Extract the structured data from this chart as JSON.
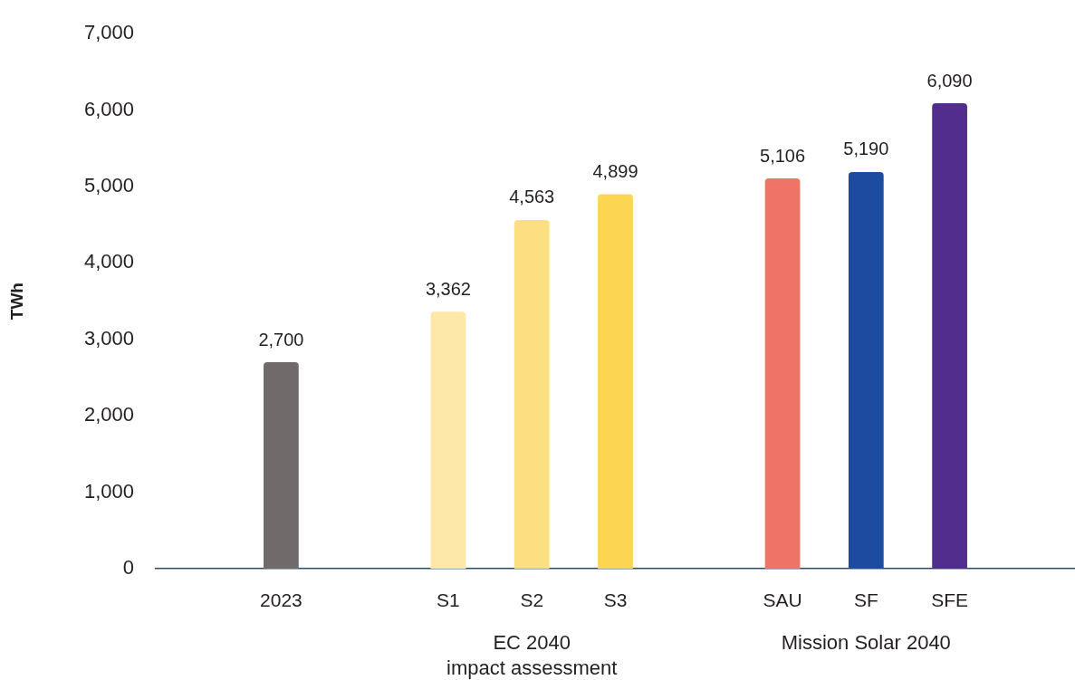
{
  "chart_data": {
    "type": "bar",
    "ylabel": "TWh",
    "categories": [
      null,
      "2023",
      null,
      "S1",
      "S2",
      "S3",
      null,
      "SAU",
      "SF",
      "SFE",
      null
    ],
    "values": [
      null,
      2700,
      null,
      3362,
      4563,
      4899,
      null,
      5106,
      5190,
      6090,
      null
    ],
    "colors": [
      null,
      "#706b6a",
      null,
      "#fde8a9",
      "#fcdf80",
      "#fcd653",
      null,
      "#f07367",
      "#1d4b9f",
      "#532d8e",
      null
    ],
    "value_labels": [
      null,
      "2,700",
      null,
      "3,362",
      "4,563",
      "4,899",
      null,
      "5,106",
      "5,190",
      "6,090",
      null
    ],
    "ylim": [
      0,
      7000
    ],
    "yticks": [
      0,
      {
        "value": 1000,
        "label": "1,000"
      },
      {
        "value": 2000,
        "label": "2,000"
      },
      {
        "value": 3000,
        "label": "3,000"
      },
      {
        "value": 4000,
        "label": "4,000"
      },
      {
        "value": 5000,
        "label": "5,000"
      },
      {
        "value": 6000,
        "label": "6,000"
      },
      {
        "value": 7000,
        "label": "7,000"
      }
    ],
    "annotations": [
      "EC 2040\nimpact assessment",
      "Mission Solar 2040"
    ]
  }
}
